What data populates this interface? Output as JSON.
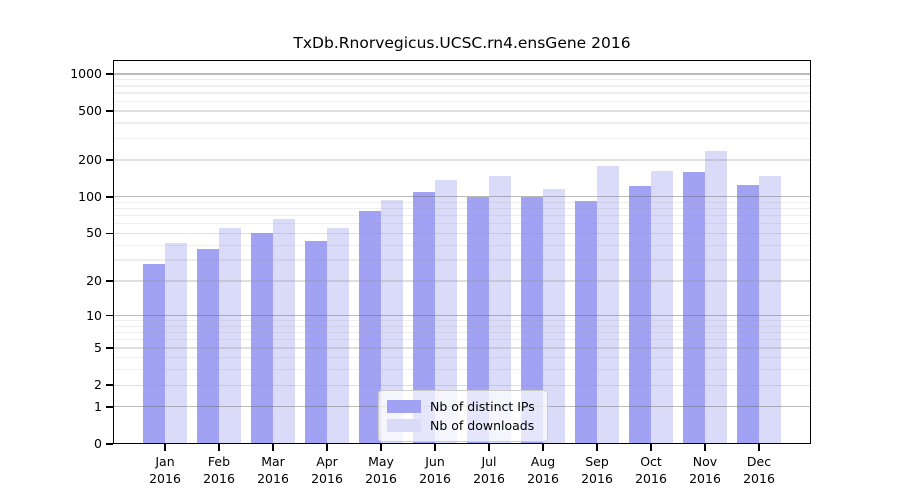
{
  "title": "TxDb.Rnorvegicus.UCSC.rn4.ensGene 2016",
  "colors": {
    "bar_distinct_ips": "#a2a2f4",
    "bar_downloads": "#dadaf9",
    "axis": "#000000",
    "legend_border": "#cccccc"
  },
  "chart_data": {
    "type": "bar",
    "title": "TxDb.Rnorvegicus.UCSC.rn4.ensGene 2016",
    "xlabel": "",
    "ylabel": "",
    "categories": [
      "Jan",
      "Feb",
      "Mar",
      "Apr",
      "May",
      "Jun",
      "Jul",
      "Aug",
      "Sep",
      "Oct",
      "Nov",
      "Dec"
    ],
    "x_tick_second_line": "2016",
    "series": [
      {
        "name": "Nb of distinct IPs",
        "color": "#a2a2f4",
        "values": [
          28,
          37,
          50,
          43,
          76,
          110,
          100,
          99,
          93,
          123,
          160,
          124
        ]
      },
      {
        "name": "Nb of downloads",
        "color": "#dadaf9",
        "values": [
          42,
          56,
          66,
          55,
          95,
          137,
          147,
          117,
          180,
          163,
          238,
          147
        ]
      }
    ],
    "y_axis": {
      "scale": "log10(value+1)",
      "tick_labels": [
        "1000",
        "500",
        "200",
        "100",
        "50",
        "20",
        "10",
        "5",
        "2",
        "1",
        "0"
      ],
      "tick_values": [
        1000,
        500,
        200,
        100,
        50,
        20,
        10,
        5,
        2,
        1,
        0
      ],
      "ylim": [
        0,
        1300
      ],
      "major_gridlines": [
        1,
        10,
        100,
        1000
      ],
      "mid_gridlines": [
        2,
        5,
        20,
        50,
        200,
        500
      ],
      "minor_gridlines": [
        3,
        4,
        6,
        7,
        8,
        9,
        30,
        40,
        60,
        70,
        80,
        90,
        300,
        400,
        600,
        700,
        800,
        900
      ]
    },
    "legend": {
      "position": "lower-center-inside",
      "items": [
        "Nb of distinct IPs",
        "Nb of downloads"
      ]
    },
    "grid": "on"
  }
}
